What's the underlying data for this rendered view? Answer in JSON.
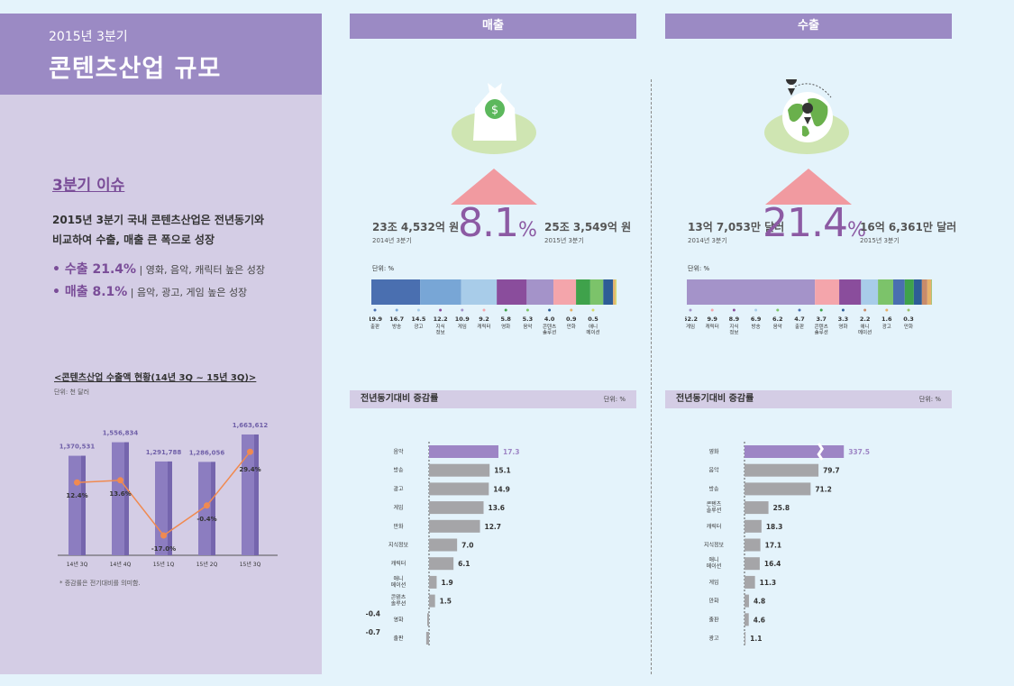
{
  "left": {
    "subtitle": "2015년 3분기",
    "title": "콘텐츠산업 규모",
    "issue_heading": "3분기 이슈",
    "issue_desc_line1": "2015년 3분기 국내 콘텐츠산업은 전년동기와",
    "issue_desc_line2": "비교하여 수출, 매출 큰 폭으로 성장",
    "issue_export_label": "• 수출 21.4%",
    "issue_export_detail": "| 영화, 음악, 캐릭터 높은 성장",
    "issue_sales_label": "• 매출  8.1%",
    "issue_sales_detail": "| 음악, 광고, 게임 높은 성장",
    "export_chart_title": "<콘텐츠산업 수출액 현황(14년 3Q ~ 15년 3Q)>",
    "export_chart_unit": "단위: 천 달러",
    "export_chart_note": "* 증감률은 전기대비를 의미함."
  },
  "sales": {
    "header": "매출",
    "prev_value": "23조 4,532억 원",
    "prev_year": "2014년 3분기",
    "growth": "8.1",
    "growth_unit": "%",
    "curr_value": "25조 3,549억 원",
    "curr_year": "2015년 3분기",
    "share_unit": "단위: %",
    "yoy_header": "전년동기대비 증감률",
    "yoy_unit": "단위: %"
  },
  "exports": {
    "header": "수출",
    "prev_value": "13억 7,053만 달러",
    "prev_year": "2014년 3분기",
    "growth": "21.4",
    "growth_unit": "%",
    "curr_value": "16억 6,361만 달러",
    "curr_year": "2015년 3분기",
    "share_unit": "단위: %",
    "yoy_header": "전년동기대비 증감률",
    "yoy_unit": "단위: %"
  },
  "colors": {
    "purple": "#9b8ac4",
    "bar_highlight": "#9d85c5",
    "bar_gray": "#a5a5a8",
    "line_orange": "#f08a50"
  },
  "chart_data": [
    {
      "id": "export-trend",
      "type": "bar",
      "categories": [
        "14년 3Q",
        "14년 4Q",
        "15년 1Q",
        "15년 2Q",
        "15년 3Q"
      ],
      "series": [
        {
          "values": [
            1370531,
            1556834,
            1291788,
            1286056,
            1663612
          ]
        },
        {
          "type": "line",
          "values": [
            12.4,
            13.6,
            -17.0,
            -0.4,
            29.4
          ]
        }
      ],
      "value_labels": [
        "1,370,531",
        "1,556,834",
        "1,291,788",
        "1,286,056",
        "1,663,612"
      ],
      "rate_labels": [
        "12.4%",
        "13.6%",
        "-17.0%",
        "-0.4%",
        "29.4%"
      ],
      "ylim": [
        0,
        1800000
      ]
    },
    {
      "id": "sales-share",
      "type": "bar",
      "stacked": true,
      "categories": [
        "출판",
        "방송",
        "광고",
        "지식정보",
        "게임",
        "캐릭터",
        "영화",
        "음악",
        "콘텐츠솔루션",
        "만화",
        "애니메이션"
      ],
      "labels": [
        "출판",
        "방송",
        "광고",
        "지식\n정보",
        "게임",
        "캐릭터",
        "영화",
        "음악",
        "콘텐츠\n솔루션",
        "만화",
        "애니\n메이션"
      ],
      "values": [
        19.9,
        16.7,
        14.5,
        12.2,
        10.9,
        9.2,
        5.8,
        5.3,
        4.0,
        0.9,
        0.5
      ],
      "value_labels": [
        "19.9",
        "16.7",
        "14.5",
        "12.2",
        "10.9",
        "9.2",
        "5.8",
        "5.3",
        "4.0",
        "0.9",
        "0.5"
      ],
      "colors": [
        "#4a6fb0",
        "#78a6d6",
        "#a8cce9",
        "#8a4d9c",
        "#a493c9",
        "#f4a5ab",
        "#3fa24b",
        "#7cc36a",
        "#2e5d96",
        "#e6b06a",
        "#d6d96a"
      ]
    },
    {
      "id": "export-share",
      "type": "bar",
      "stacked": true,
      "categories": [
        "게임",
        "캐릭터",
        "지식정보",
        "방송",
        "음악",
        "출판",
        "콘텐츠솔루션",
        "영화",
        "애니메이션",
        "광고",
        "만화"
      ],
      "labels": [
        "게임",
        "캐릭터",
        "지식\n정보",
        "방송",
        "음악",
        "출판",
        "콘텐츠\n솔루션",
        "영화",
        "애니\n메이션",
        "광고",
        "만화"
      ],
      "values": [
        52.2,
        9.9,
        8.9,
        6.9,
        6.2,
        4.7,
        3.7,
        3.3,
        2.2,
        1.6,
        0.3
      ],
      "value_labels": [
        "52.2",
        "9.9",
        "8.9",
        "6.9",
        "6.2",
        "4.7",
        "3.7",
        "3.3",
        "2.2",
        "1.6",
        "0.3"
      ],
      "colors": [
        "#a493c9",
        "#f4a5ab",
        "#8a4d9c",
        "#a8cce9",
        "#7cc36a",
        "#4a6fb0",
        "#3fa24b",
        "#2e5d96",
        "#c88b6a",
        "#e6b06a",
        "#9cc06a"
      ]
    },
    {
      "id": "sales-yoy",
      "type": "bar",
      "orientation": "horizontal",
      "categories": [
        "음악",
        "방송",
        "광고",
        "게임",
        "만화",
        "지식정보",
        "캐릭터",
        "애니메이션",
        "콘텐츠솔루션",
        "영화",
        "출판"
      ],
      "labels": [
        "음악",
        "방송",
        "광고",
        "게임",
        "만화",
        "지식정보",
        "캐릭터",
        "애니\n메이션",
        "콘텐츠\n솔루션",
        "영화",
        "출판"
      ],
      "values": [
        17.3,
        15.1,
        14.9,
        13.6,
        12.7,
        7.0,
        6.1,
        1.9,
        1.5,
        -0.4,
        -0.7
      ],
      "value_labels": [
        "17.3",
        "15.1",
        "14.9",
        "13.6",
        "12.7",
        "7.0",
        "6.1",
        "1.9",
        "1.5",
        "-0.4",
        "-0.7"
      ],
      "highlight_index": 0
    },
    {
      "id": "export-yoy",
      "type": "bar",
      "orientation": "horizontal",
      "categories": [
        "영화",
        "음악",
        "방송",
        "콘텐츠솔루션",
        "캐릭터",
        "지식정보",
        "애니메이션",
        "게임",
        "만화",
        "출판",
        "광고"
      ],
      "labels": [
        "영화",
        "음악",
        "방송",
        "콘텐츠\n솔루션",
        "캐릭터",
        "지식정보",
        "애니\n메이션",
        "게임",
        "만화",
        "출판",
        "광고"
      ],
      "values": [
        337.5,
        79.7,
        71.2,
        25.8,
        18.3,
        17.1,
        16.4,
        11.3,
        4.8,
        4.6,
        1.1
      ],
      "value_labels": [
        "337.5",
        "79.7",
        "71.2",
        "25.8",
        "18.3",
        "17.1",
        "16.4",
        "11.3",
        "4.8",
        "4.6",
        "1.1"
      ],
      "highlight_index": 0,
      "axis_break": true
    }
  ]
}
